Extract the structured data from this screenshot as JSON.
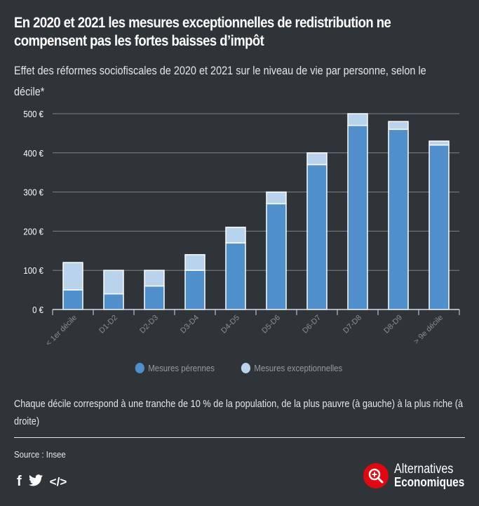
{
  "header": {
    "title": "En 2020 et 2021 les mesures exceptionnelles de redistribution ne compensent pas les fortes baisses d’impôt",
    "subtitle": "Effet des réformes sociofiscales de 2020 et 2021 sur le niveau de vie par personne, selon le décile*"
  },
  "colors": {
    "background": "#2e3438",
    "perennes": "#4e8fcc",
    "exceptionnelles": "#b9d3ec",
    "gridline": "#7f8386",
    "axis": "#d8dde6",
    "logo_red": "#e30613"
  },
  "chart_data": {
    "type": "bar",
    "stacked": true,
    "title": "En 2020 et 2021 les mesures exceptionnelles de redistribution ne compensent pas les fortes baisses d’impôt",
    "subtitle": "Effet des réformes sociofiscales de 2020 et 2021 sur le niveau de vie par personne, selon le décile*",
    "xlabel": "",
    "ylabel": "",
    "categories": [
      "< 1er décile",
      "D1-D2",
      "D2-D3",
      "D3-D4",
      "D4-D5",
      "D5-D6",
      "D6-D7",
      "D7-D8",
      "D8-D9",
      "> 9e décile"
    ],
    "series": [
      {
        "name": "Mesures pérennes",
        "color": "#4e8fcc",
        "values": [
          50,
          40,
          60,
          100,
          170,
          270,
          370,
          470,
          460,
          420
        ]
      },
      {
        "name": "Mesures exceptionnelles",
        "color": "#b9d3ec",
        "values": [
          70,
          60,
          40,
          40,
          40,
          30,
          30,
          30,
          20,
          10
        ]
      }
    ],
    "ylim": [
      0,
      500
    ],
    "yticks": [
      0,
      100,
      200,
      300,
      400,
      500
    ],
    "ytick_labels": [
      "0 €",
      "100 €",
      "200 €",
      "300 €",
      "400 €",
      "500 €"
    ],
    "grid": true,
    "legend_position": "bottom-center"
  },
  "footer": {
    "note": "Chaque décile correspond à une tranche de 10 % de la population, de la plus pauvre (à gauche) à la plus riche (à droite)",
    "source": "Source : Insee",
    "social": {
      "facebook": "f",
      "twitter": "twitter",
      "embed": "</>"
    },
    "logo": {
      "line1": "Alternatives",
      "line2": "Economiques"
    }
  }
}
